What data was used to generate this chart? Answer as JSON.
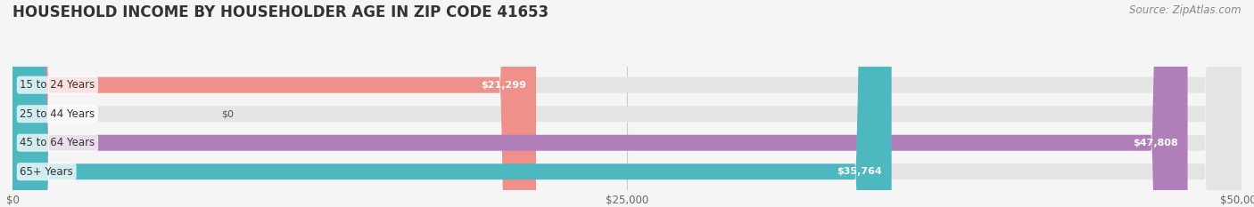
{
  "title": "HOUSEHOLD INCOME BY HOUSEHOLDER AGE IN ZIP CODE 41653",
  "source": "Source: ZipAtlas.com",
  "categories": [
    "15 to 24 Years",
    "25 to 44 Years",
    "45 to 64 Years",
    "65+ Years"
  ],
  "values": [
    21299,
    0,
    47808,
    35764
  ],
  "bar_colors": [
    "#f0908a",
    "#a8c4e0",
    "#b07fba",
    "#4db8c0"
  ],
  "bar_height": 0.55,
  "xlim": [
    0,
    50000
  ],
  "xticks": [
    0,
    25000,
    50000
  ],
  "xtick_labels": [
    "$0",
    "$25,000",
    "$50,000"
  ],
  "background_color": "#f5f5f5",
  "bar_bg_color": "#e4e4e4",
  "title_fontsize": 12,
  "label_fontsize": 8.5,
  "value_fontsize": 8,
  "source_fontsize": 8.5
}
